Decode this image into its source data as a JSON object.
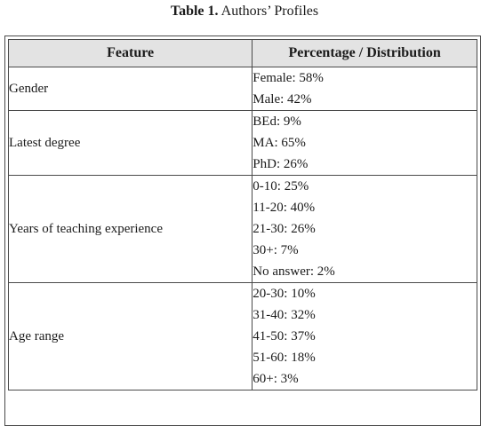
{
  "caption": {
    "label": "Table 1.",
    "title": "Authors’ Profiles"
  },
  "table": {
    "headers": [
      "Feature",
      "Percentage / Distribution"
    ],
    "rows": [
      {
        "feature": "Gender",
        "values": [
          "Female: 58%",
          "Male: 42%"
        ]
      },
      {
        "feature": "Latest degree",
        "values": [
          "BEd: 9%",
          "MA: 65%",
          "PhD: 26%"
        ]
      },
      {
        "feature": "Years of teaching experience",
        "values": [
          "0-10: 25%",
          "11-20: 40%",
          "21-30: 26%",
          "30+: 7%",
          "No answer: 2%"
        ]
      },
      {
        "feature": "Age range",
        "values": [
          "20-30: 10%",
          "31-40: 32%",
          "41-50: 37%",
          "51-60: 18%",
          "60+: 3%"
        ]
      }
    ]
  }
}
